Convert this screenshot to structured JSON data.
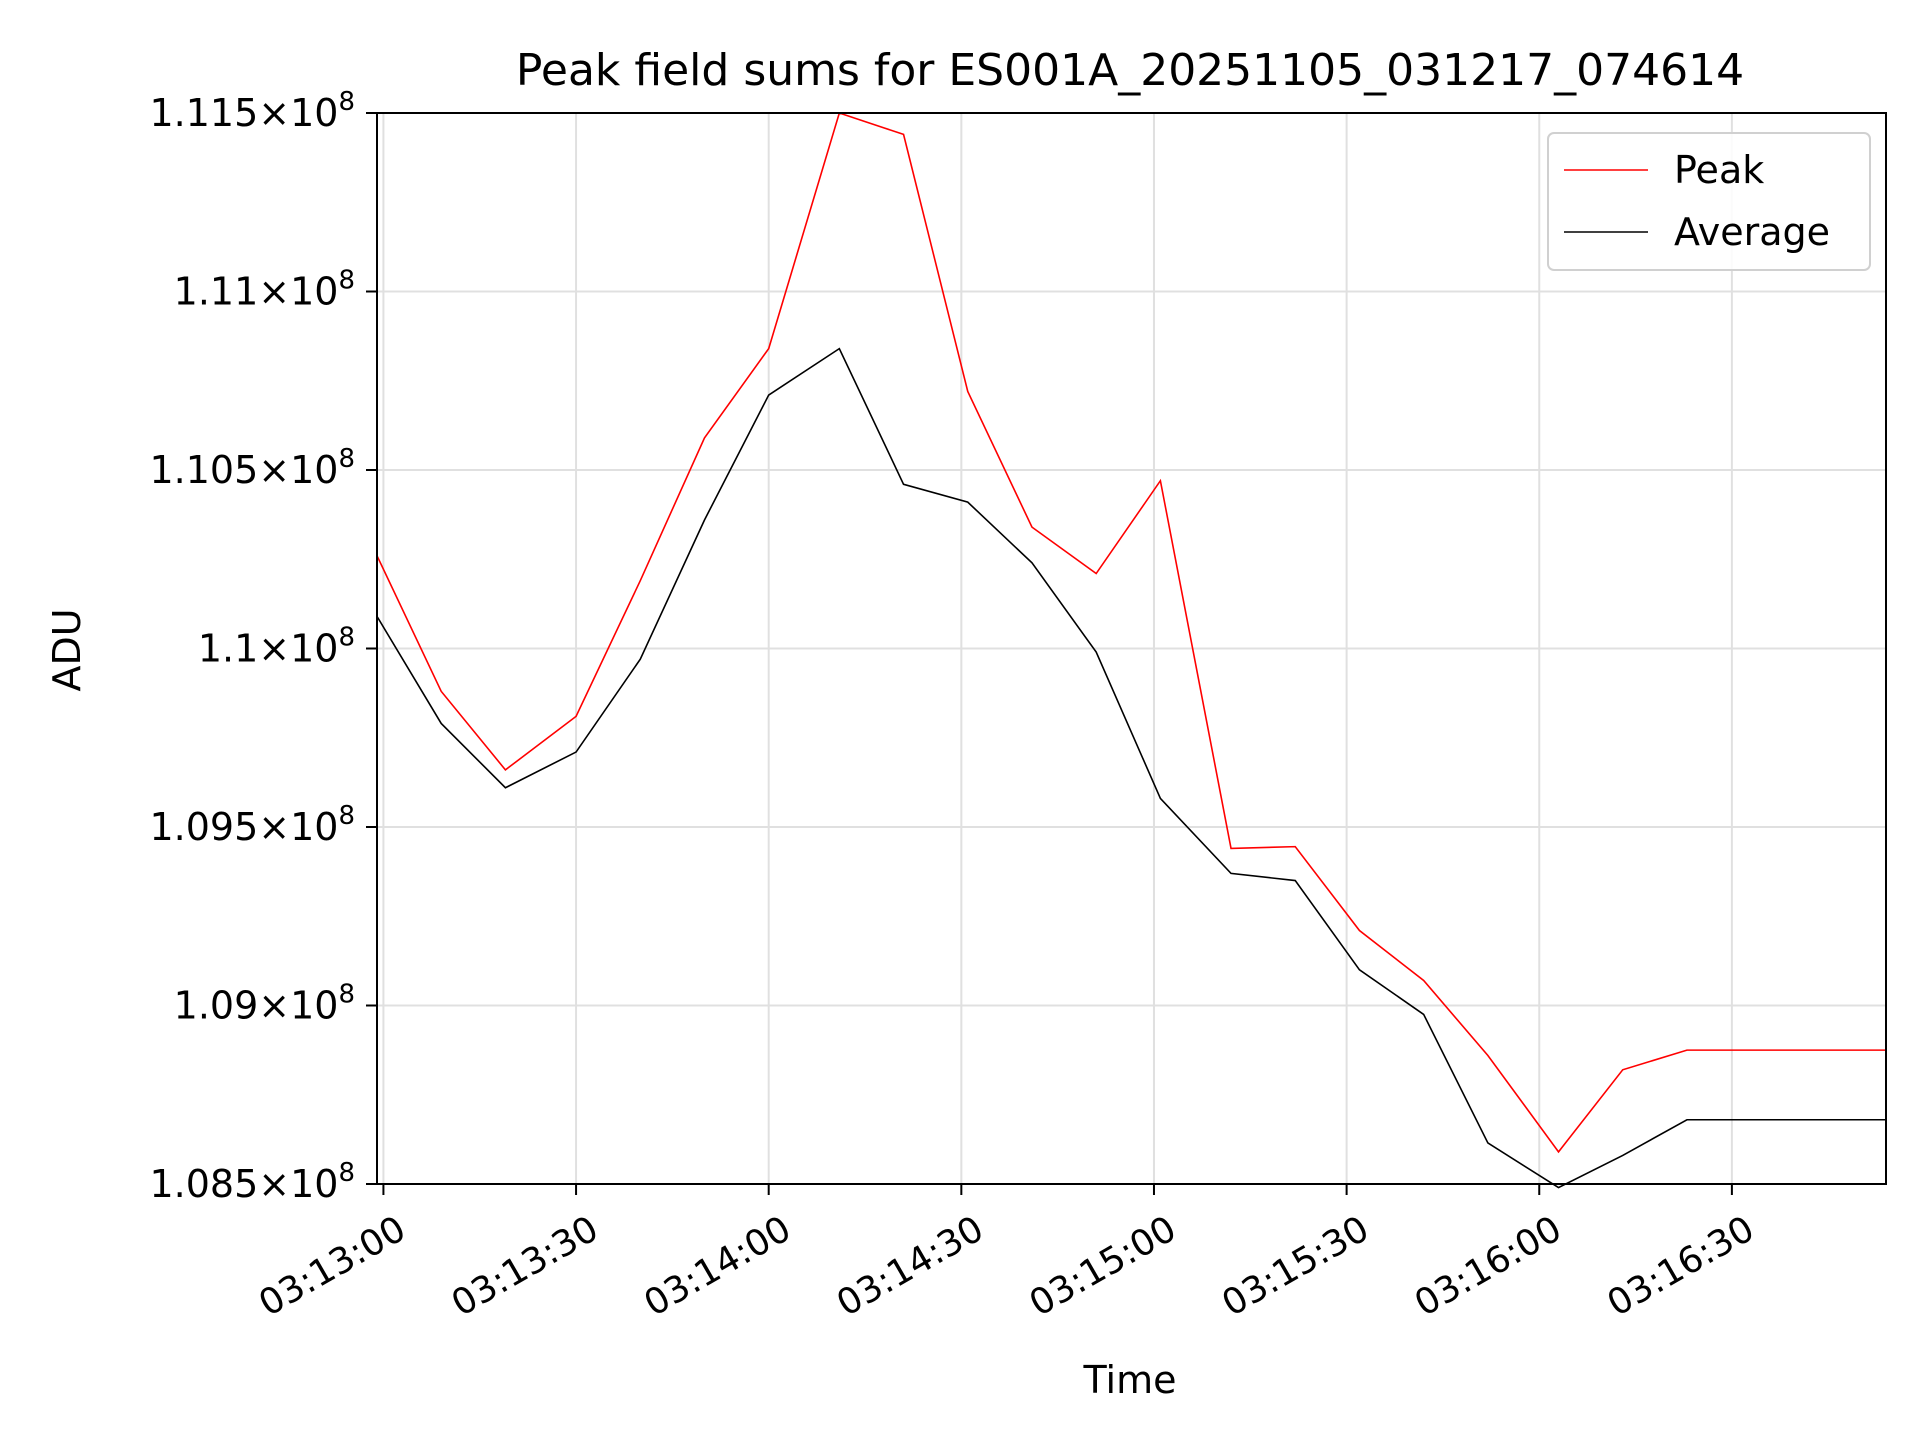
{
  "chart_data": {
    "type": "line",
    "title": "Peak field sums for ES001A_20251105_031217_074614",
    "xlabel": "Time",
    "ylabel": "ADU",
    "x_ticks": [
      "03:13:00",
      "03:13:30",
      "03:14:00",
      "03:14:30",
      "03:15:00",
      "03:15:30",
      "03:16:00",
      "03:16:30"
    ],
    "y_ticks": [
      {
        "value": 108500000,
        "mantissa": "1.085"
      },
      {
        "value": 109000000,
        "mantissa": "1.09"
      },
      {
        "value": 109500000,
        "mantissa": "1.095"
      },
      {
        "value": 110000000,
        "mantissa": "1.1"
      },
      {
        "value": 110500000,
        "mantissa": "1.105"
      },
      {
        "value": 111000000,
        "mantissa": "1.11"
      },
      {
        "value": 111500000,
        "mantissa": "1.115"
      }
    ],
    "y_exponent": "8",
    "xlim": [
      "03:12:59",
      "03:16:54"
    ],
    "ylim": [
      108500000,
      111500000
    ],
    "grid": true,
    "legend_position": "top-right",
    "x": [
      "03:12:59",
      "03:13:09",
      "03:13:19",
      "03:13:30",
      "03:13:40",
      "03:13:50",
      "03:14:00",
      "03:14:11",
      "03:14:21",
      "03:14:31",
      "03:14:41",
      "03:14:51",
      "03:15:01",
      "03:15:12",
      "03:15:22",
      "03:15:32",
      "03:15:42",
      "03:15:52",
      "03:16:03",
      "03:16:13",
      "03:16:23",
      "03:16:54"
    ],
    "series": [
      {
        "name": "Peak",
        "color": "#ff0000",
        "values": [
          110260000,
          109880000,
          109660000,
          109810000,
          110190000,
          110590000,
          110840000,
          111500000,
          111440000,
          110720000,
          110340000,
          110210000,
          110470000,
          109440000,
          109445000,
          109210000,
          109070000,
          108860000,
          108590000,
          108820000,
          108875000,
          108875000
        ]
      },
      {
        "name": "Average",
        "color": "#000000",
        "values": [
          110090000,
          109790000,
          109610000,
          109710000,
          109970000,
          110360000,
          110710000,
          110840000,
          110460000,
          110410000,
          110240000,
          109990000,
          109580000,
          109370000,
          109350000,
          109100000,
          108975000,
          108615000,
          108490000,
          108580000,
          108680000,
          108680000
        ]
      }
    ]
  }
}
